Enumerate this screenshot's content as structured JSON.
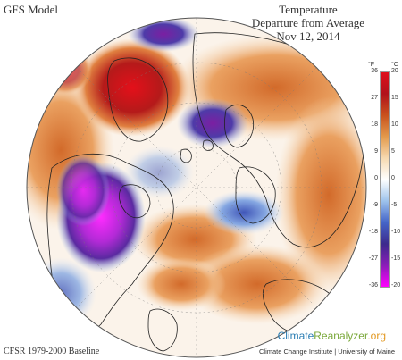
{
  "header": {
    "model_label": "GFS Model",
    "title_line1": "Temperature",
    "title_line2": "Departure from Average",
    "date": "Nov 12, 2014"
  },
  "legend": {
    "unit_f": "°F",
    "unit_c": "°C",
    "ticks": [
      {
        "f": "36",
        "c": "20"
      },
      {
        "f": "27",
        "c": "15"
      },
      {
        "f": "18",
        "c": "10"
      },
      {
        "f": "9",
        "c": "5"
      },
      {
        "f": "0",
        "c": "0"
      },
      {
        "f": "-9",
        "c": "-5"
      },
      {
        "f": "-18",
        "c": "-10"
      },
      {
        "f": "-27",
        "c": "-15"
      },
      {
        "f": "-36",
        "c": "-20"
      }
    ],
    "colors": [
      "#ff00ff",
      "#8a1db8",
      "#3c2a8c",
      "#4465c8",
      "#9ec3ec",
      "#ffffff",
      "#f6d9b0",
      "#e39a4c",
      "#c8521e",
      "#b0121c",
      "#e0101c"
    ]
  },
  "footer": {
    "baseline": "CFSR 1979-2000 Baseline",
    "brand_part1": "Climate",
    "brand_part2": "Reanalyzer",
    "brand_part3": ".org",
    "brand_sub": "Climate Change Institute | University of Maine"
  },
  "map": {
    "projection": "orthographic",
    "variable": "Temperature Departure from Average",
    "ocean_color": "#ffffff",
    "coast_color": "#222222"
  }
}
